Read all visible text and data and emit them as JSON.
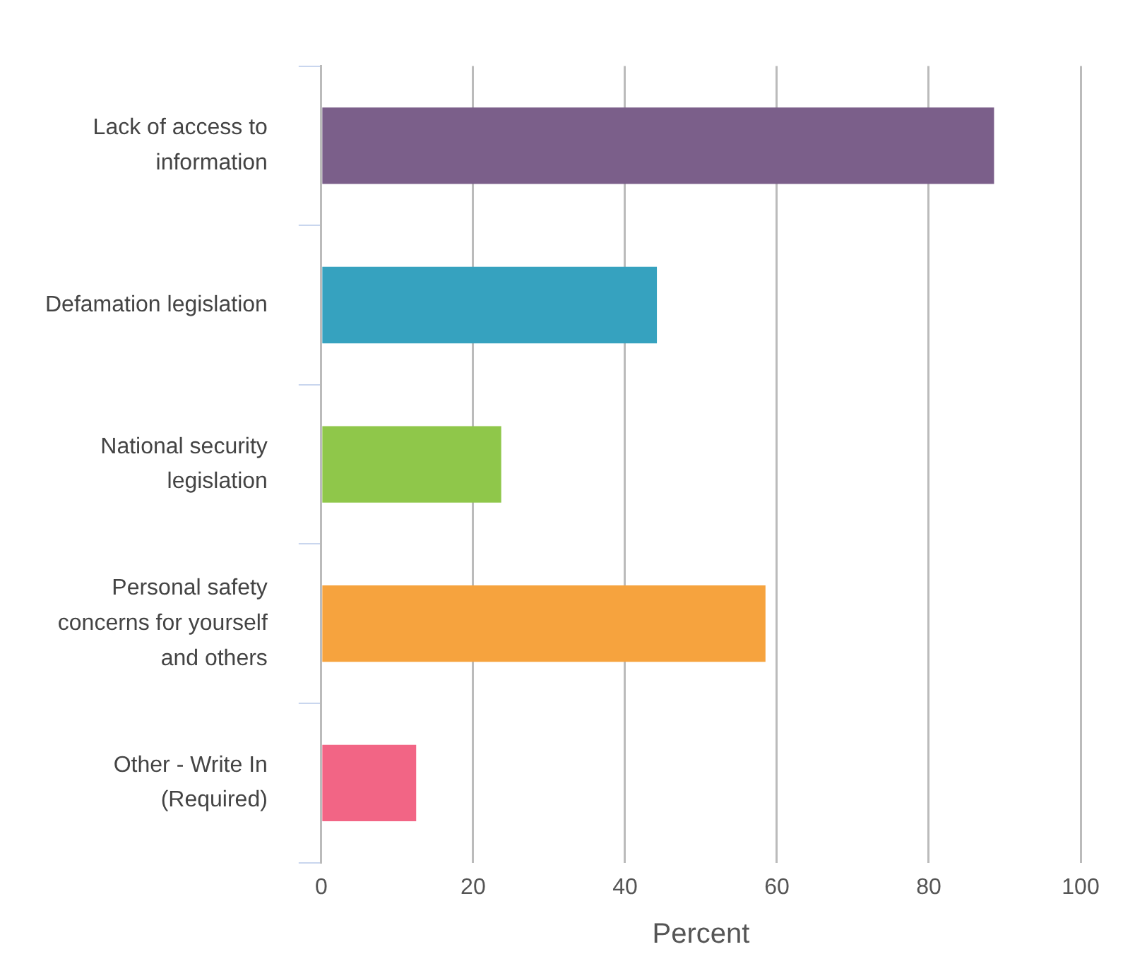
{
  "chart_data": {
    "type": "bar",
    "orientation": "horizontal",
    "xlabel": "Percent",
    "categories": [
      "Lack of access to information",
      "Defamation legislation",
      "National security legislation",
      "Personal safety concerns for yourself and others",
      "Other - Write In (Required)"
    ],
    "values": [
      88.6,
      44.2,
      23.7,
      58.5,
      12.5
    ],
    "colors": [
      "#7b5f8a",
      "#36a2bf",
      "#8fc74a",
      "#f6a33e",
      "#f26585"
    ],
    "xlim": [
      0,
      100
    ],
    "xticks": [
      0,
      20,
      40,
      60,
      80,
      100
    ],
    "grid": "x",
    "legend": false
  }
}
